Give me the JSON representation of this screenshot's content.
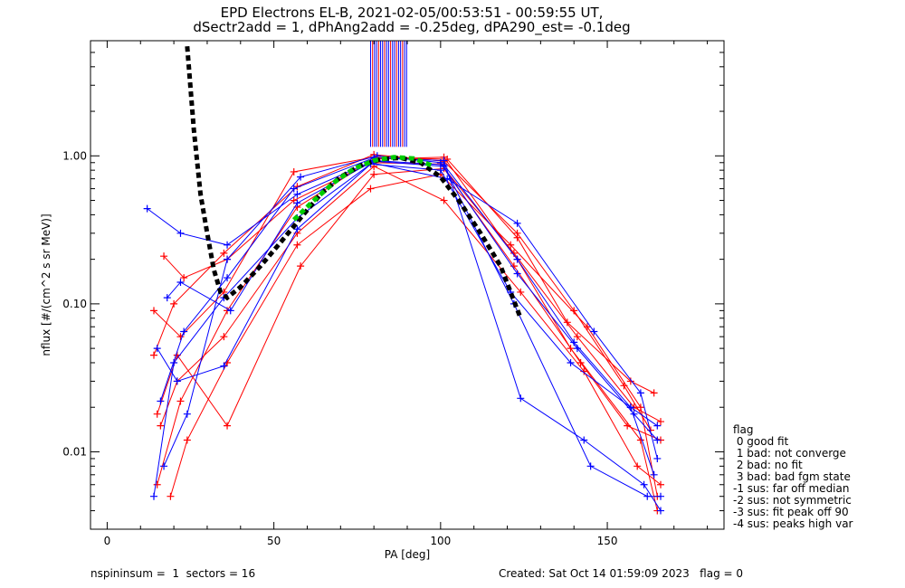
{
  "chart_data": {
    "type": "scatter",
    "title": "EPD Electrons EL-B, 2021-02-05/00:53:51 - 00:59:55 UT,",
    "subtitle": "dSectr2add = 1, dPhAng2add = -0.25deg, dPA290_est=  -0.1deg",
    "xlabel": "PA [deg]",
    "ylabel": "nflux [#/(cm^2 s sr MeV)]",
    "xlim": [
      -5,
      185
    ],
    "ylim": [
      0.003,
      6
    ],
    "yscale": "log",
    "x_ticks": [
      0,
      50,
      100,
      150
    ],
    "y_ticks": [
      0.01,
      0.1,
      1.0
    ],
    "y_tick_labels": [
      "0.01",
      "0.10",
      "1.00"
    ],
    "grid": false,
    "series": [
      {
        "color": "#ff0000",
        "x": [
          15,
          22,
          36,
          57,
          80,
          101,
          123,
          139,
          160,
          165
        ],
        "y": [
          0.006,
          0.022,
          0.09,
          0.45,
          0.95,
          0.98,
          0.2,
          0.05,
          0.012,
          0.004
        ]
      },
      {
        "color": "#ff0000",
        "x": [
          14,
          20,
          35,
          57,
          80,
          101,
          123,
          140,
          155,
          163
        ],
        "y": [
          0.045,
          0.1,
          0.22,
          0.62,
          1.02,
          0.92,
          0.3,
          0.09,
          0.028,
          0.014
        ]
      },
      {
        "color": "#ff0000",
        "x": [
          17,
          23,
          36,
          56,
          79,
          100,
          122,
          141,
          158,
          166
        ],
        "y": [
          0.21,
          0.15,
          0.2,
          0.5,
          0.9,
          0.88,
          0.22,
          0.06,
          0.02,
          0.016
        ]
      },
      {
        "color": "#ff0000",
        "x": [
          16,
          21,
          35,
          57,
          80,
          101,
          124,
          143,
          159,
          166
        ],
        "y": [
          0.015,
          0.03,
          0.06,
          0.3,
          0.85,
          0.5,
          0.12,
          0.035,
          0.008,
          0.006
        ]
      },
      {
        "color": "#ff0000",
        "x": [
          19,
          24,
          36,
          57,
          79,
          100,
          121,
          144,
          160,
          165
        ],
        "y": [
          0.005,
          0.012,
          0.04,
          0.25,
          0.6,
          0.75,
          0.25,
          0.07,
          0.02,
          0.005
        ]
      },
      {
        "color": "#ff0000",
        "x": [
          14,
          22,
          35,
          56,
          80,
          102,
          123,
          138,
          157,
          164
        ],
        "y": [
          0.09,
          0.06,
          0.12,
          0.78,
          0.98,
          0.95,
          0.28,
          0.075,
          0.03,
          0.025
        ]
      },
      {
        "color": "#ff0000",
        "x": [
          15,
          21,
          36,
          58,
          80,
          101,
          122,
          142,
          156,
          166
        ],
        "y": [
          0.018,
          0.045,
          0.015,
          0.18,
          0.75,
          0.82,
          0.18,
          0.04,
          0.015,
          0.012
        ]
      },
      {
        "color": "#0000ff",
        "x": [
          12,
          22,
          36,
          57,
          80,
          101,
          123,
          140,
          157,
          164
        ],
        "y": [
          0.44,
          0.3,
          0.25,
          0.55,
          0.93,
          0.87,
          0.2,
          0.055,
          0.02,
          0.007
        ]
      },
      {
        "color": "#0000ff",
        "x": [
          14,
          20,
          35,
          57,
          79,
          100,
          121,
          139,
          157,
          165
        ],
        "y": [
          0.005,
          0.04,
          0.11,
          0.38,
          0.88,
          0.8,
          0.12,
          0.04,
          0.02,
          0.015
        ]
      },
      {
        "color": "#0000ff",
        "x": [
          16,
          23,
          36,
          56,
          80,
          101,
          124,
          143,
          161,
          166
        ],
        "y": [
          0.022,
          0.065,
          0.15,
          0.6,
          0.97,
          0.93,
          0.023,
          0.012,
          0.006,
          0.004
        ]
      },
      {
        "color": "#0000ff",
        "x": [
          18,
          22,
          37,
          57,
          79,
          102,
          123,
          146,
          160,
          165
        ],
        "y": [
          0.11,
          0.14,
          0.09,
          0.48,
          0.9,
          0.7,
          0.35,
          0.065,
          0.025,
          0.009
        ]
      },
      {
        "color": "#0000ff",
        "x": [
          15,
          21,
          35,
          57,
          80,
          101,
          122,
          145,
          162,
          166
        ],
        "y": [
          0.05,
          0.03,
          0.038,
          0.32,
          0.92,
          0.85,
          0.1,
          0.008,
          0.005,
          0.005
        ]
      },
      {
        "color": "#0000ff",
        "x": [
          17,
          24,
          36,
          58,
          81,
          100,
          123,
          141,
          158,
          165
        ],
        "y": [
          0.008,
          0.018,
          0.2,
          0.72,
          1.0,
          0.9,
          0.16,
          0.05,
          0.018,
          0.012
        ]
      }
    ],
    "fit_curves": [
      {
        "color": "#000000",
        "style": "dashed",
        "x": [
          24,
          26,
          28,
          30,
          32,
          34,
          36,
          40,
          46,
          52,
          58,
          64,
          70,
          76,
          82,
          88,
          94,
          100,
          106,
          112,
          118,
          124
        ],
        "y": [
          5.5,
          1.5,
          0.55,
          0.3,
          0.17,
          0.12,
          0.11,
          0.13,
          0.18,
          0.26,
          0.38,
          0.55,
          0.72,
          0.86,
          0.95,
          0.97,
          0.9,
          0.72,
          0.48,
          0.3,
          0.18,
          0.08
        ]
      },
      {
        "color": "#00cc00",
        "style": "dashed",
        "x": [
          56,
          62,
          68,
          74,
          80,
          86,
          92,
          98
        ],
        "y": [
          0.37,
          0.5,
          0.66,
          0.82,
          0.93,
          0.98,
          0.96,
          0.85
        ]
      }
    ],
    "spike_markers": {
      "x_range": [
        79,
        90
      ],
      "y_from": 1.15
    }
  },
  "legend": {
    "title": "flag",
    "items": [
      " 0 good fit",
      " 1 bad: not converge",
      " 2 bad: no fit",
      " 3 bad: bad fgm state",
      "-1 sus: far off median",
      "-2 sus: not symmetric",
      "-3 sus: fit peak off 90",
      "-4 sus: peaks high var"
    ]
  },
  "footer": {
    "left": "nspininsum =  1  sectors = 16",
    "right": "Created: Sat Oct 14 01:59:09 2023   flag = 0"
  }
}
